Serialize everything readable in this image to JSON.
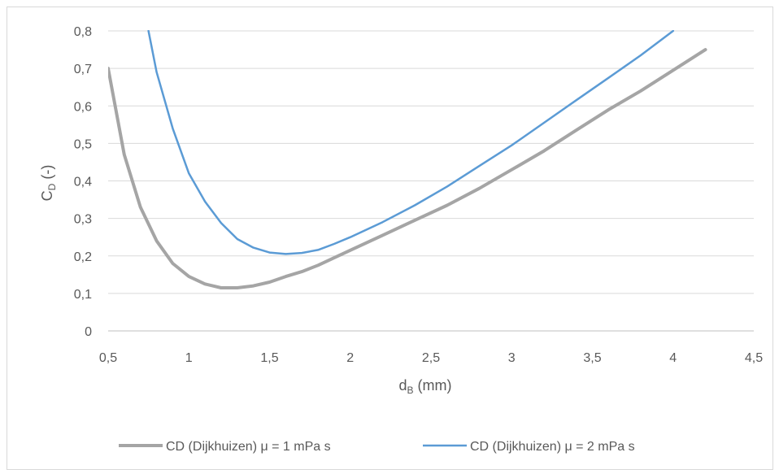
{
  "chart_data": {
    "type": "line",
    "xlabel": {
      "main": "d",
      "sub": "B",
      "rest": " (mm)"
    },
    "ylabel": {
      "main": "C",
      "sub": "D",
      "rest": " (-)"
    },
    "xlim": [
      0.5,
      4.5
    ],
    "ylim": [
      0,
      0.8
    ],
    "x_ticks": [
      0.5,
      1,
      1.5,
      2,
      2.5,
      3,
      3.5,
      4,
      4.5
    ],
    "x_tick_labels": [
      "0,5",
      "1",
      "1,5",
      "2",
      "2,5",
      "3",
      "3,5",
      "4",
      "4,5"
    ],
    "y_ticks": [
      0,
      0.1,
      0.2,
      0.3,
      0.4,
      0.5,
      0.6,
      0.7,
      0.8
    ],
    "y_tick_labels": [
      "0",
      "0,1",
      "0,2",
      "0,3",
      "0,4",
      "0,5",
      "0,6",
      "0,7",
      "0,8"
    ],
    "grid": "horizontal",
    "legend_position": "bottom",
    "series": [
      {
        "name": "CD (Dijkhuizen) μ = 1 mPa s",
        "color": "#a5a5a5",
        "x": [
          0.5,
          0.6,
          0.7,
          0.8,
          0.9,
          1.0,
          1.1,
          1.2,
          1.3,
          1.4,
          1.5,
          1.6,
          1.7,
          1.8,
          1.9,
          2.0,
          2.2,
          2.4,
          2.6,
          2.8,
          3.0,
          3.2,
          3.4,
          3.6,
          3.8,
          4.0,
          4.2
        ],
        "y": [
          0.7,
          0.47,
          0.33,
          0.24,
          0.18,
          0.145,
          0.125,
          0.115,
          0.115,
          0.12,
          0.13,
          0.145,
          0.158,
          0.175,
          0.195,
          0.215,
          0.255,
          0.295,
          0.335,
          0.38,
          0.43,
          0.48,
          0.535,
          0.59,
          0.64,
          0.695,
          0.75
        ]
      },
      {
        "name": "CD (Dijkhuizen) μ = 2 mPa s",
        "color": "#5b9bd5",
        "x": [
          0.75,
          0.8,
          0.9,
          1.0,
          1.1,
          1.2,
          1.3,
          1.4,
          1.5,
          1.6,
          1.7,
          1.8,
          1.9,
          2.0,
          2.2,
          2.4,
          2.6,
          2.8,
          3.0,
          3.2,
          3.4,
          3.6,
          3.8,
          4.0
        ],
        "y": [
          0.8,
          0.69,
          0.54,
          0.42,
          0.345,
          0.288,
          0.245,
          0.222,
          0.209,
          0.205,
          0.208,
          0.216,
          0.232,
          0.25,
          0.29,
          0.335,
          0.385,
          0.44,
          0.495,
          0.555,
          0.615,
          0.675,
          0.735,
          0.8
        ]
      }
    ]
  }
}
